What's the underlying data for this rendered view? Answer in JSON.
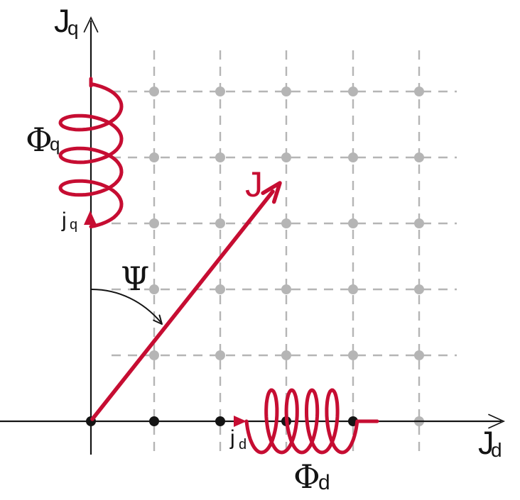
{
  "colors": {
    "accent": "#c60d32",
    "ink": "#141414",
    "grid": "#b5b5b5"
  },
  "labels": {
    "q_axis": {
      "base": "J",
      "sub": "q"
    },
    "d_axis": {
      "base": "J",
      "sub": "d"
    },
    "vector": "J",
    "angle": "Ψ",
    "q_flux": {
      "base": "Φ",
      "sub": "q"
    },
    "d_flux": {
      "base": "Φ",
      "sub": "d"
    },
    "q_current": {
      "base": "j",
      "sub": "q"
    },
    "d_current": {
      "base": "j",
      "sub": "d"
    }
  }
}
